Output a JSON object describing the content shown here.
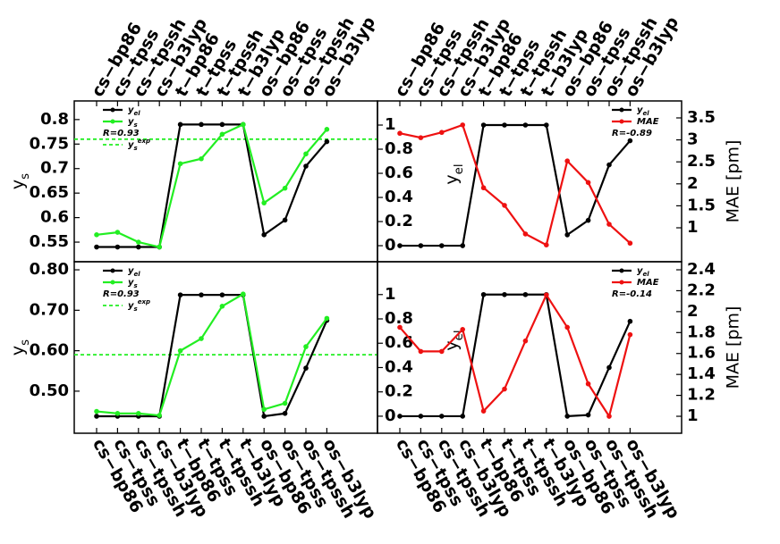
{
  "chart_data": [
    {
      "type": "line",
      "categories": [
        "cs−bp86",
        "cs−tpss",
        "cs−tpssh",
        "cs−b3lyp",
        "t−bp86",
        "t−tpss",
        "t−tpssh",
        "t−b3lyp",
        "os−bp86",
        "os−tpss",
        "os−tpssh",
        "os−b3lyp"
      ],
      "series": [
        {
          "name": "y",
          "sub": "el",
          "color": "#000000",
          "values": [
            0.54,
            0.54,
            0.54,
            0.54,
            0.79,
            0.79,
            0.79,
            0.79,
            0.565,
            0.595,
            0.705,
            0.755
          ]
        },
        {
          "name": "y",
          "sub": "s",
          "color": "#22ee22",
          "values": [
            0.565,
            0.57,
            0.55,
            0.54,
            0.71,
            0.72,
            0.77,
            0.79,
            0.63,
            0.66,
            0.73,
            0.78
          ]
        }
      ],
      "hline": {
        "name": "y",
        "sub": "s",
        "sup": "exp",
        "value": 0.76,
        "color": "#22ee22"
      },
      "ylim": [
        0.51,
        0.838
      ],
      "yticks": [
        0.55,
        0.6,
        0.65,
        0.7,
        0.75,
        0.8
      ],
      "ylabel": {
        "text": "y",
        "sub": "s"
      },
      "annotation": "R=0.93",
      "legend": "upper left",
      "xtick_side": "top"
    },
    {
      "type": "line",
      "categories": [
        "cs−bp86",
        "cs−tpss",
        "cs−tpssh",
        "cs−b3lyp",
        "t−bp86",
        "t−tpss",
        "t−tpssh",
        "t−b3lyp",
        "os−bp86",
        "os−tpss",
        "os−tpssh",
        "os−b3lyp"
      ],
      "series": [
        {
          "name": "y",
          "sub": "el",
          "color": "#000000",
          "values": [
            0,
            0,
            0,
            0,
            1,
            1,
            1,
            1,
            0.09,
            0.21,
            0.67,
            0.87
          ]
        },
        {
          "name": "MAE",
          "color": "#ee1111",
          "axis": "y2",
          "values": [
            3.15,
            3.05,
            3.17,
            3.34,
            1.91,
            1.51,
            0.86,
            0.61,
            2.52,
            2.03,
            1.08,
            0.65
          ]
        }
      ],
      "ylim": [
        -0.133,
        1.2
      ],
      "yticks": [
        0,
        0.2,
        0.4,
        0.6,
        0.8,
        1
      ],
      "y2lim": [
        0.228,
        3.886
      ],
      "y2ticks": [
        1,
        1.5,
        2,
        2.5,
        3,
        3.5
      ],
      "ylabel": {
        "text": "y",
        "sub": "el"
      },
      "y2label": "MAE [pm]",
      "annotation": "R=-0.89",
      "legend": "upper right",
      "xtick_side": "top"
    },
    {
      "type": "line",
      "categories": [
        "cs−bp86",
        "cs−tpss",
        "cs−tpssh",
        "cs−b3lyp",
        "t−bp86",
        "t−tpss",
        "t−tpssh",
        "t−b3lyp",
        "os−bp86",
        "os−tpss",
        "os−tpssh",
        "os−b3lyp"
      ],
      "series": [
        {
          "name": "y",
          "sub": "el",
          "color": "#000000",
          "values": [
            0.438,
            0.438,
            0.438,
            0.438,
            0.738,
            0.738,
            0.738,
            0.738,
            0.438,
            0.445,
            0.557,
            0.675
          ]
        },
        {
          "name": "y",
          "sub": "s",
          "color": "#22ee22",
          "values": [
            0.45,
            0.445,
            0.445,
            0.44,
            0.6,
            0.63,
            0.71,
            0.74,
            0.455,
            0.47,
            0.61,
            0.68
          ]
        }
      ],
      "hline": {
        "name": "y",
        "sub": "s",
        "sup": "exp",
        "value": 0.59,
        "color": "#22ee22"
      },
      "ylim": [
        0.396,
        0.82
      ],
      "yticks": [
        {
          "value": 0.5,
          "label": "0.50"
        },
        {
          "value": 0.6,
          "label": "0.60"
        },
        {
          "value": 0.7,
          "label": "0.70"
        },
        {
          "value": 0.8,
          "label": "0.80"
        }
      ],
      "ylabel": {
        "text": "y",
        "sub": "s"
      },
      "annotation": "R=0.93",
      "legend": "upper left",
      "xtick_side": "bottom"
    },
    {
      "type": "line",
      "categories": [
        "cs−bp86",
        "cs−tpss",
        "cs−tpssh",
        "cs−b3lyp",
        "t−bp86",
        "t−tpss",
        "t−tpssh",
        "t−b3lyp",
        "os−bp86",
        "os−tpss",
        "os−tpssh",
        "os−b3lyp"
      ],
      "series": [
        {
          "name": "y",
          "sub": "el",
          "color": "#000000",
          "values": [
            0,
            0,
            0,
            0,
            1,
            1,
            1,
            1,
            0,
            0.01,
            0.4,
            0.78
          ]
        },
        {
          "name": "MAE",
          "color": "#ee1111",
          "axis": "y2",
          "values": [
            1.85,
            1.62,
            1.62,
            1.83,
            1.05,
            1.26,
            1.72,
            2.16,
            1.85,
            1.31,
            1.0,
            1.78
          ]
        }
      ],
      "ylim": [
        -0.14,
        1.27
      ],
      "yticks": [
        0,
        0.2,
        0.4,
        0.6,
        0.8,
        1
      ],
      "y2lim": [
        0.838,
        2.477
      ],
      "y2ticks": [
        1,
        1.2,
        1.4,
        1.6,
        1.8,
        2,
        2.2,
        2.4
      ],
      "ylabel": {
        "text": "y",
        "sub": "el"
      },
      "y2label": "MAE [pm]",
      "annotation": "R=-0.14",
      "legend": "upper right",
      "xtick_side": "bottom"
    }
  ]
}
